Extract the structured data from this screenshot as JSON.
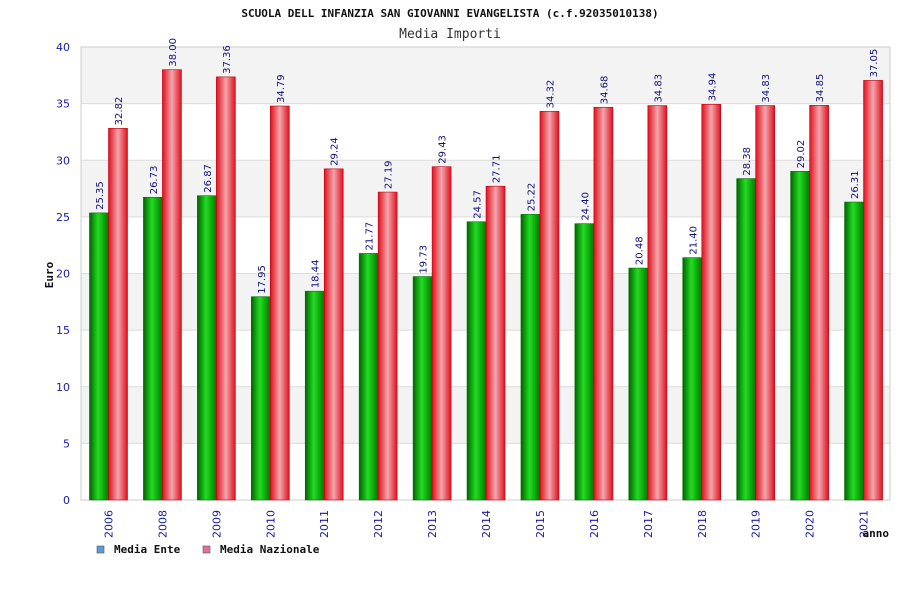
{
  "chart_data": {
    "type": "bar",
    "title": "SCUOLA DELL INFANZIA SAN GIOVANNI EVANGELISTA (c.f.92035010138)",
    "subtitle": "Media Importi",
    "xlabel": "anno",
    "ylabel": "Euro",
    "ylim": [
      0,
      40
    ],
    "yticks": [
      0,
      5,
      10,
      15,
      20,
      25,
      30,
      35,
      40
    ],
    "grid": true,
    "legend_position": "bottom-left",
    "categories": [
      "2006",
      "2008",
      "2009",
      "2010",
      "2011",
      "2012",
      "2013",
      "2014",
      "2015",
      "2016",
      "2017",
      "2018",
      "2019",
      "2020",
      "2021"
    ],
    "series": [
      {
        "name": "Media Ente",
        "color": "#00aa00",
        "legend_color": "#5b9bd5",
        "values": [
          25.35,
          26.73,
          26.87,
          17.95,
          18.44,
          21.77,
          19.73,
          24.57,
          25.22,
          24.4,
          20.48,
          21.4,
          28.38,
          29.02,
          26.31
        ],
        "labels": [
          "25.35",
          "26.73",
          "26.87",
          "17.95",
          "18.44",
          "21.77",
          "19.73",
          "24.57",
          "25.22",
          "24.40",
          "20.48",
          "21.40",
          "28.38",
          "29.02",
          "26.31"
        ]
      },
      {
        "name": "Media Nazionale",
        "color": "#e8202a",
        "legend_color": "#e070a0",
        "values": [
          32.82,
          38.0,
          37.36,
          34.79,
          29.24,
          27.19,
          29.43,
          27.71,
          34.32,
          34.68,
          34.83,
          34.94,
          34.83,
          34.85,
          37.05
        ],
        "labels": [
          "32.82",
          "38.00",
          "37.36",
          "34.79",
          "29.24",
          "27.19",
          "29.43",
          "27.71",
          "34.32",
          "34.68",
          "34.83",
          "34.94",
          "34.83",
          "34.85",
          "37.05"
        ]
      }
    ]
  }
}
